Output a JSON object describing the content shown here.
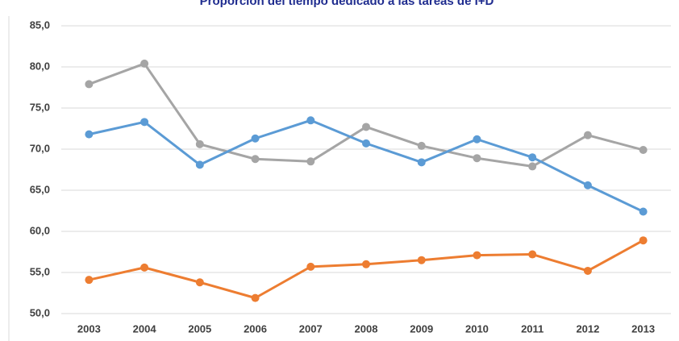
{
  "chart_data": {
    "type": "line",
    "title": "Proporción del tiempo dedicado a las tareas de I+D",
    "categories": [
      "2003",
      "2004",
      "2005",
      "2006",
      "2007",
      "2008",
      "2009",
      "2010",
      "2011",
      "2012",
      "2013"
    ],
    "series": [
      {
        "color": "#a5a5a5",
        "values": [
          77.9,
          80.4,
          70.6,
          68.8,
          68.5,
          72.7,
          70.4,
          68.9,
          67.9,
          71.7,
          69.9
        ]
      },
      {
        "color": "#5b9bd5",
        "values": [
          71.8,
          73.3,
          68.1,
          71.3,
          73.5,
          70.7,
          68.4,
          71.2,
          69.0,
          65.6,
          62.4
        ]
      },
      {
        "color": "#ed7d31",
        "values": [
          54.1,
          55.6,
          53.8,
          51.9,
          55.7,
          56.0,
          56.5,
          57.1,
          57.2,
          55.2,
          58.9
        ]
      }
    ],
    "ylim": [
      50,
      85
    ],
    "yticks": [
      {
        "value": 50,
        "label": "50,0"
      },
      {
        "value": 55,
        "label": "55,0"
      },
      {
        "value": 60,
        "label": "60,0"
      },
      {
        "value": 65,
        "label": "65,0"
      },
      {
        "value": 70,
        "label": "70,0"
      },
      {
        "value": 75,
        "label": "75,0"
      },
      {
        "value": 80,
        "label": "80,0"
      },
      {
        "value": 85,
        "label": "85,0"
      }
    ],
    "grid": true
  }
}
